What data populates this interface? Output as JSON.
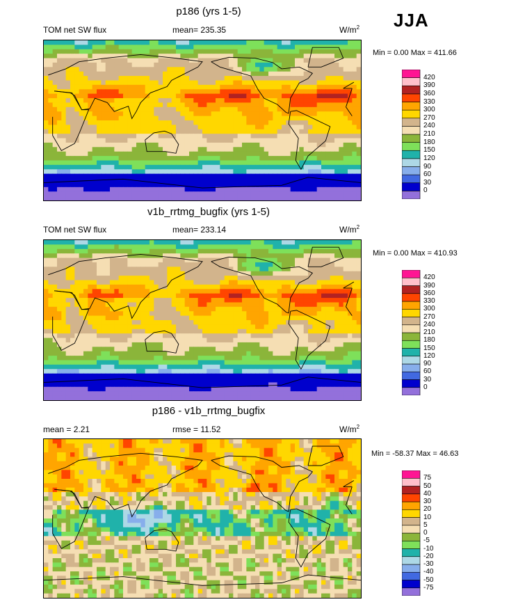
{
  "season": "JJA",
  "units_base": "W/m",
  "units_exp": "2",
  "panels": [
    {
      "title": "p186 (yrs 1-5)",
      "left_label": "TOM net SW flux",
      "center_label": "mean= 235.35",
      "minmax": "Min =   0.00 Max = 411.66"
    },
    {
      "title": "v1b_rrtmg_bugfix (yrs 1-5)",
      "left_label": "TOM net SW flux",
      "center_label": "mean= 233.14",
      "minmax": "Min =   0.00 Max = 410.93"
    },
    {
      "title": "p186 - v1b_rrtmg_bugfix",
      "left_label": "mean =   2.21",
      "center_label": "rmse =  11.52",
      "minmax": "Min = -58.37 Max =  46.63"
    }
  ],
  "chart_data": [
    {
      "type": "heatmap",
      "title": "p186 (yrs 1-5)",
      "variable": "TOM net SW flux",
      "mean": 235.35,
      "min": 0.0,
      "max": 411.66,
      "levels": [
        0,
        30,
        60,
        90,
        120,
        150,
        180,
        210,
        240,
        270,
        300,
        330,
        360,
        390,
        420
      ],
      "colors": [
        "#9370db",
        "#0000cd",
        "#4169e1",
        "#87aeeb",
        "#add8e6",
        "#20b2aa",
        "#7ee05a",
        "#8bb53a",
        "#f5deb3",
        "#d2b48c",
        "#ffd700",
        "#ffa500",
        "#ff4500",
        "#b22222",
        "#ffc0cb",
        "#ff1493"
      ]
    },
    {
      "type": "heatmap",
      "title": "v1b_rrtmg_bugfix (yrs 1-5)",
      "variable": "TOM net SW flux",
      "mean": 233.14,
      "min": 0.0,
      "max": 410.93,
      "levels": [
        0,
        30,
        60,
        90,
        120,
        150,
        180,
        210,
        240,
        270,
        300,
        330,
        360,
        390,
        420
      ],
      "colors": [
        "#9370db",
        "#0000cd",
        "#4169e1",
        "#87aeeb",
        "#add8e6",
        "#20b2aa",
        "#7ee05a",
        "#8bb53a",
        "#f5deb3",
        "#d2b48c",
        "#ffd700",
        "#ffa500",
        "#ff4500",
        "#b22222",
        "#ffc0cb",
        "#ff1493"
      ]
    },
    {
      "type": "heatmap",
      "title": "p186 - v1b_rrtmg_bugfix",
      "mean": 2.21,
      "rmse": 11.52,
      "min": -58.37,
      "max": 46.63,
      "levels": [
        -75,
        -50,
        -40,
        -30,
        -20,
        -10,
        -5,
        0,
        5,
        10,
        20,
        30,
        40,
        50,
        75
      ],
      "colors": [
        "#9370db",
        "#0000cd",
        "#4169e1",
        "#87aeeb",
        "#add8e6",
        "#20b2aa",
        "#7ee05a",
        "#8bb53a",
        "#f5deb3",
        "#d2b48c",
        "#ffd700",
        "#ffa500",
        "#ff4500",
        "#b22222",
        "#ffc0cb",
        "#ff1493"
      ]
    }
  ]
}
